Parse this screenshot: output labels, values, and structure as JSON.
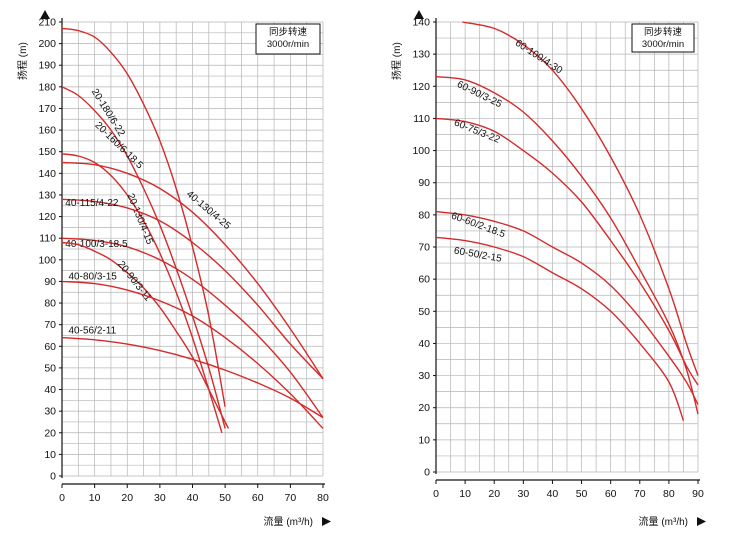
{
  "chart_data": [
    {
      "type": "line",
      "ylabel": "扬程 (m)",
      "xlabel": "流量 (m³/h)",
      "legend_box": [
        "同步转速",
        "3000r/min"
      ],
      "xlim": [
        0,
        80
      ],
      "ylim": [
        0,
        210
      ],
      "xticks": [
        0,
        10,
        20,
        30,
        40,
        50,
        60,
        70,
        80
      ],
      "yticks": [
        0,
        10,
        20,
        30,
        40,
        50,
        60,
        70,
        80,
        90,
        100,
        110,
        120,
        130,
        140,
        150,
        160,
        170,
        180,
        190,
        200,
        210
      ],
      "grid": true,
      "series": [
        {
          "name": "20-180/6-22",
          "points": [
            [
              0,
              207
            ],
            [
              5,
              206
            ],
            [
              10,
              203
            ],
            [
              15,
              196
            ],
            [
              20,
              186
            ],
            [
              25,
              172
            ],
            [
              30,
              155
            ],
            [
              35,
              133
            ],
            [
              40,
              106
            ],
            [
              45,
              74
            ],
            [
              50,
              32
            ]
          ]
        },
        {
          "name": "20-160/6-18.5",
          "points": [
            [
              0,
              180
            ],
            [
              5,
              176
            ],
            [
              10,
              169
            ],
            [
              15,
              160
            ],
            [
              20,
              148
            ],
            [
              25,
              133
            ],
            [
              30,
              116
            ],
            [
              35,
              96
            ],
            [
              40,
              74
            ],
            [
              45,
              50
            ],
            [
              50,
              22
            ]
          ]
        },
        {
          "name": "20-130/4-15",
          "points": [
            [
              0,
              149
            ],
            [
              5,
              148
            ],
            [
              10,
              145
            ],
            [
              15,
              139
            ],
            [
              20,
              130
            ],
            [
              25,
              118
            ],
            [
              30,
              103
            ],
            [
              35,
              85
            ],
            [
              40,
              64
            ],
            [
              45,
              40
            ],
            [
              49,
              20
            ]
          ]
        },
        {
          "name": "40-130/4-25",
          "points": [
            [
              0,
              145
            ],
            [
              10,
              144
            ],
            [
              20,
              140
            ],
            [
              30,
              133
            ],
            [
              40,
              122
            ],
            [
              50,
              107
            ],
            [
              60,
              89
            ],
            [
              70,
              68
            ],
            [
              80,
              45
            ]
          ]
        },
        {
          "name": "40-115/4-22",
          "points": [
            [
              0,
              128
            ],
            [
              10,
              127
            ],
            [
              20,
              124
            ],
            [
              30,
              118
            ],
            [
              40,
              108
            ],
            [
              50,
              95
            ],
            [
              60,
              79
            ],
            [
              70,
              61
            ],
            [
              80,
              45
            ]
          ]
        },
        {
          "name": "40-100/3-18.5",
          "points": [
            [
              0,
              110
            ],
            [
              10,
              109
            ],
            [
              20,
              106
            ],
            [
              30,
              100
            ],
            [
              40,
              91
            ],
            [
              50,
              79
            ],
            [
              60,
              65
            ],
            [
              70,
              48
            ],
            [
              80,
              27
            ]
          ]
        },
        {
          "name": "20-90/3-11",
          "points": [
            [
              0,
              108
            ],
            [
              5,
              107
            ],
            [
              10,
              104
            ],
            [
              15,
              100
            ],
            [
              20,
              94
            ],
            [
              25,
              87
            ],
            [
              30,
              78
            ],
            [
              35,
              67
            ],
            [
              40,
              55
            ],
            [
              45,
              40
            ],
            [
              51,
              22
            ]
          ]
        },
        {
          "name": "40-80/3-15",
          "points": [
            [
              0,
              90
            ],
            [
              10,
              89
            ],
            [
              20,
              86
            ],
            [
              30,
              81
            ],
            [
              40,
              74
            ],
            [
              50,
              64
            ],
            [
              60,
              52
            ],
            [
              70,
              38
            ],
            [
              80,
              22
            ]
          ]
        },
        {
          "name": "40-56/2-11",
          "points": [
            [
              0,
              64
            ],
            [
              10,
              63
            ],
            [
              20,
              61
            ],
            [
              30,
              58
            ],
            [
              40,
              54
            ],
            [
              50,
              49
            ],
            [
              60,
              43
            ],
            [
              70,
              36
            ],
            [
              80,
              27
            ]
          ]
        }
      ]
    },
    {
      "type": "line",
      "ylabel": "扬程 (m)",
      "xlabel": "流量 (m³/h)",
      "legend_box": [
        "同步转速",
        "3000r/min"
      ],
      "xlim": [
        0,
        90
      ],
      "ylim": [
        0,
        140
      ],
      "xticks": [
        0,
        10,
        20,
        30,
        40,
        50,
        60,
        70,
        80,
        90
      ],
      "yticks": [
        0,
        10,
        20,
        30,
        40,
        50,
        60,
        70,
        80,
        90,
        100,
        110,
        120,
        130,
        140
      ],
      "grid": true,
      "series": [
        {
          "name": "60-100/4-30",
          "points": [
            [
              9,
              140
            ],
            [
              20,
              138
            ],
            [
              30,
              133
            ],
            [
              40,
              125
            ],
            [
              50,
              113
            ],
            [
              60,
              98
            ],
            [
              70,
              80
            ],
            [
              80,
              57
            ],
            [
              86,
              40
            ],
            [
              90,
              30
            ]
          ]
        },
        {
          "name": "60-90/3-25",
          "points": [
            [
              0,
              123
            ],
            [
              10,
              122
            ],
            [
              20,
              118
            ],
            [
              30,
              112
            ],
            [
              40,
              103
            ],
            [
              50,
              92
            ],
            [
              60,
              79
            ],
            [
              70,
              63
            ],
            [
              80,
              46
            ],
            [
              86,
              32
            ],
            [
              90,
              18
            ]
          ]
        },
        {
          "name": "60-75/3-22",
          "points": [
            [
              0,
              110
            ],
            [
              10,
              109
            ],
            [
              20,
              106
            ],
            [
              30,
              100
            ],
            [
              40,
              93
            ],
            [
              50,
              84
            ],
            [
              60,
              72
            ],
            [
              70,
              59
            ],
            [
              80,
              44
            ],
            [
              86,
              33
            ],
            [
              90,
              27
            ]
          ]
        },
        {
          "name": "60-60/2-18.5",
          "points": [
            [
              0,
              81
            ],
            [
              10,
              80
            ],
            [
              20,
              78
            ],
            [
              30,
              75
            ],
            [
              40,
              70
            ],
            [
              50,
              65
            ],
            [
              60,
              58
            ],
            [
              70,
              48
            ],
            [
              80,
              36
            ],
            [
              86,
              28
            ],
            [
              90,
              21
            ]
          ]
        },
        {
          "name": "60-50/2-15",
          "points": [
            [
              0,
              73
            ],
            [
              10,
              72
            ],
            [
              20,
              70
            ],
            [
              30,
              67
            ],
            [
              40,
              62
            ],
            [
              50,
              57
            ],
            [
              60,
              50
            ],
            [
              70,
              40
            ],
            [
              80,
              28
            ],
            [
              85,
              16
            ]
          ]
        }
      ]
    }
  ]
}
